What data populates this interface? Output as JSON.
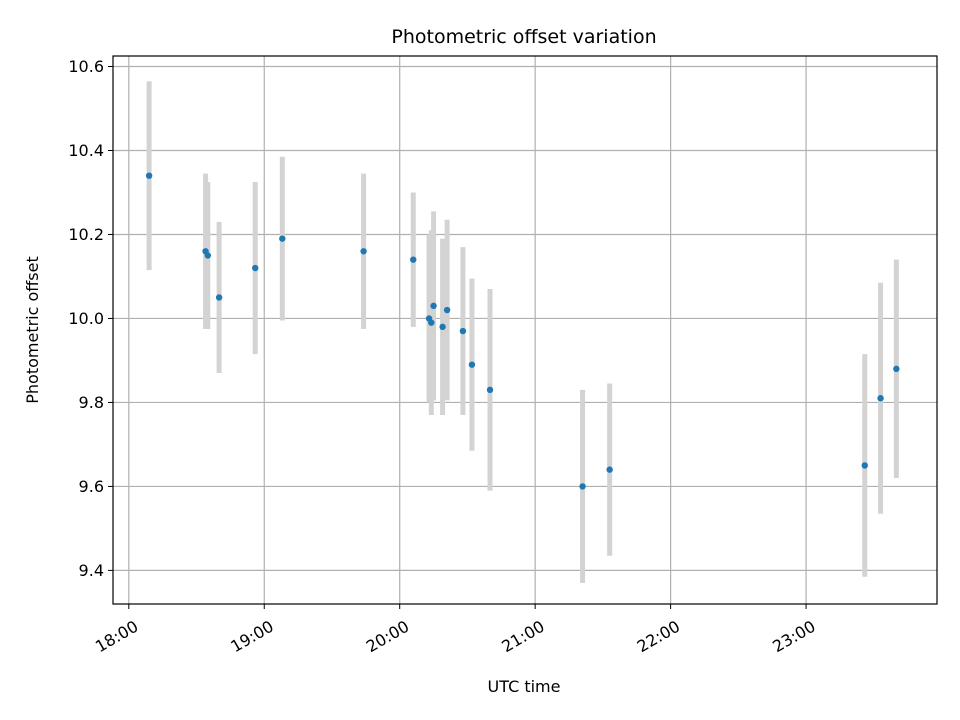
{
  "chart_data": {
    "type": "scatter",
    "title": "Photometric offset variation",
    "xlabel": "UTC time",
    "ylabel": "Photometric offset",
    "x_ticks": [
      "18:00",
      "19:00",
      "20:00",
      "21:00",
      "22:00",
      "23:00"
    ],
    "y_ticks": [
      "9.4",
      "9.6",
      "9.8",
      "10.0",
      "10.2",
      "10.4",
      "10.6"
    ],
    "xlim": [
      "17:53",
      "23:58"
    ],
    "ylim": [
      9.32,
      10.625
    ],
    "grid": true,
    "marker_color": "#1f77b4",
    "errorbar_color": "#d3d3d3",
    "series": [
      {
        "points": [
          {
            "x": "18:09",
            "y": 10.34,
            "err": 0.225
          },
          {
            "x": "18:34",
            "y": 10.16,
            "err": 0.185
          },
          {
            "x": "18:35",
            "y": 10.15,
            "err": 0.175
          },
          {
            "x": "18:40",
            "y": 10.05,
            "err": 0.18
          },
          {
            "x": "18:56",
            "y": 10.12,
            "err": 0.205
          },
          {
            "x": "19:08",
            "y": 10.19,
            "err": 0.195
          },
          {
            "x": "19:44",
            "y": 10.16,
            "err": 0.185
          },
          {
            "x": "20:06",
            "y": 10.14,
            "err": 0.16
          },
          {
            "x": "20:13",
            "y": 10.0,
            "err": 0.2
          },
          {
            "x": "20:14",
            "y": 9.99,
            "err": 0.22
          },
          {
            "x": "20:15",
            "y": 10.03,
            "err": 0.225
          },
          {
            "x": "20:19",
            "y": 9.98,
            "err": 0.21
          },
          {
            "x": "20:21",
            "y": 10.02,
            "err": 0.215
          },
          {
            "x": "20:28",
            "y": 9.97,
            "err": 0.2
          },
          {
            "x": "20:32",
            "y": 9.89,
            "err": 0.205
          },
          {
            "x": "20:40",
            "y": 9.83,
            "err": 0.24
          },
          {
            "x": "21:21",
            "y": 9.6,
            "err": 0.23
          },
          {
            "x": "21:33",
            "y": 9.64,
            "err": 0.205
          },
          {
            "x": "23:26",
            "y": 9.65,
            "err": 0.265
          },
          {
            "x": "23:33",
            "y": 9.81,
            "err": 0.275
          },
          {
            "x": "23:40",
            "y": 9.88,
            "err": 0.26
          }
        ]
      }
    ]
  }
}
